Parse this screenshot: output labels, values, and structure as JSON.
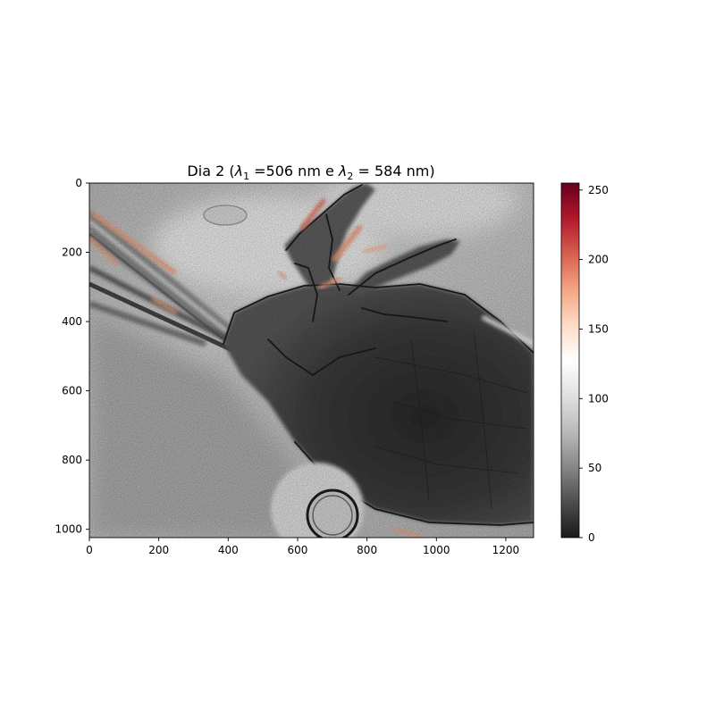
{
  "chart_data": {
    "type": "heatmap",
    "title_parts": {
      "prefix": "Dia 2 (",
      "lambda": "λ",
      "sub1": "1",
      "middle": " =506 nm e ",
      "sub2": "2",
      "suffix": " = 584 nm)"
    },
    "xlabel": "",
    "ylabel": "",
    "xlim": [
      0,
      1280
    ],
    "ylim": [
      1024,
      0
    ],
    "x_ticks": [
      0,
      200,
      400,
      600,
      800,
      1000,
      1200
    ],
    "y_ticks": [
      0,
      200,
      400,
      600,
      800,
      1000
    ],
    "colorbar": {
      "colormap": "RdGy_r",
      "range": [
        0,
        255
      ],
      "ticks": [
        0,
        50,
        100,
        150,
        200,
        250
      ],
      "stops": [
        "#1a1a1a",
        "#4d4d4d",
        "#878787",
        "#bababa",
        "#e0e0e0",
        "#ffffff",
        "#fddbc7",
        "#f4a582",
        "#d6604d",
        "#b2182b",
        "#67001f"
      ]
    },
    "background_level": 180
  }
}
